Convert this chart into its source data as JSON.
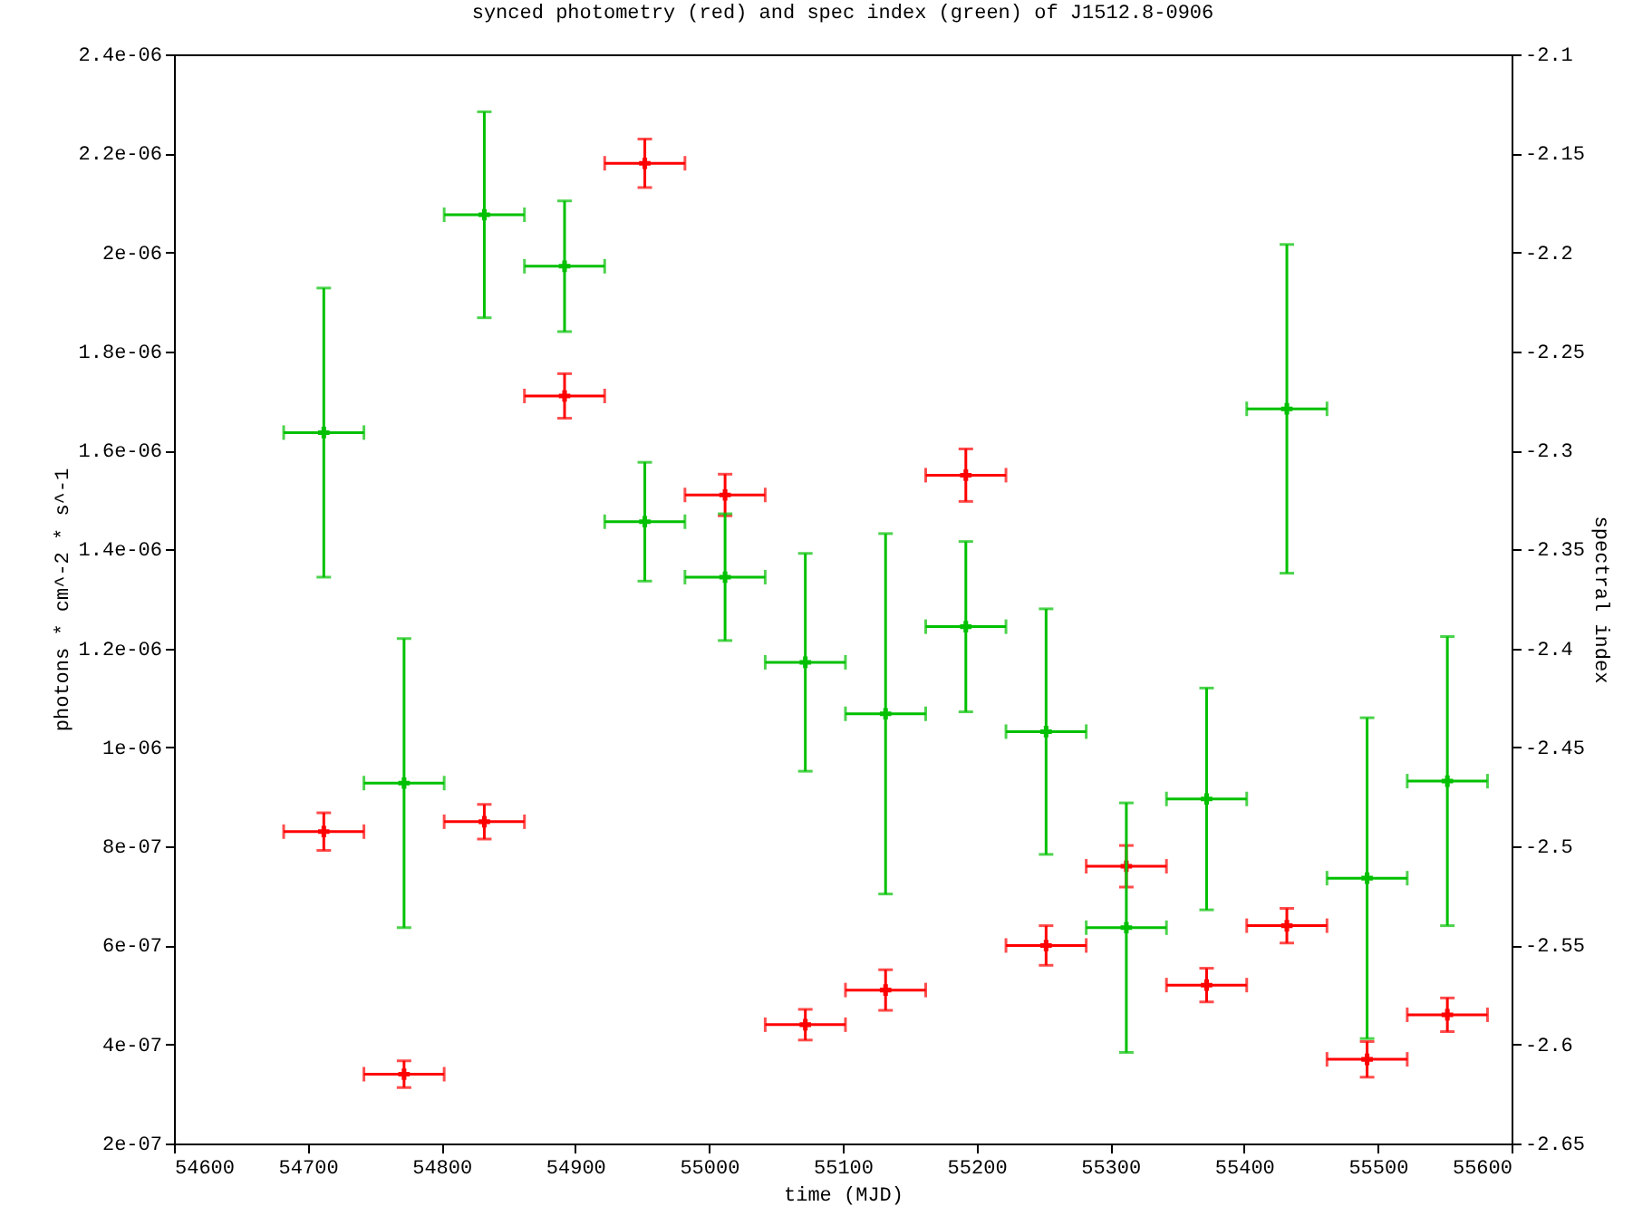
{
  "chart_data": {
    "type": "scatter",
    "title": "synced photometry (red) and spec index (green) of J1512.8-0906",
    "xlabel": "time (MJD)",
    "ylabel": "photons * cm^-2 * s^-1",
    "y2label": "spectral index",
    "x": [
      54712,
      54772,
      54832,
      54892,
      54952,
      55012,
      55072,
      55132,
      55192,
      55252,
      55312,
      55372,
      55432,
      55492,
      55552
    ],
    "series": [
      {
        "color": "#ff0000",
        "marker": "cross",
        "values": [
          8.3e-07,
          3.4e-07,
          8.5e-07,
          1.71e-06,
          2.18e-06,
          1.51e-06,
          4.4e-07,
          5.1e-07,
          1.55e-06,
          6e-07,
          7.6e-07,
          5.2e-07,
          6.4e-07,
          3.7e-07,
          4.6e-07
        ],
        "errors": [
          3.8e-08,
          2.7e-08,
          3.5e-08,
          4.5e-08,
          4.9e-08,
          4.2e-08,
          3.1e-08,
          4.1e-08,
          5.3e-08,
          4e-08,
          4.2e-08,
          3.4e-08,
          3.5e-08,
          3.6e-08,
          3.4e-08
        ],
        "xerrors": [
          30,
          30,
          30,
          30,
          30,
          30,
          30,
          30,
          30,
          30,
          30,
          30,
          30,
          30,
          30
        ]
      },
      {
        "color": "#00c000",
        "marker": "cross",
        "axis": "y2",
        "values": [
          -2.291,
          -2.468,
          -2.181,
          -2.207,
          -2.336,
          -2.364,
          -2.407,
          -2.433,
          -2.389,
          -2.442,
          -2.541,
          -2.476,
          -2.279,
          -2.516,
          -2.467
        ],
        "errors": [
          0.073,
          0.073,
          0.052,
          0.033,
          0.03,
          0.032,
          0.055,
          0.091,
          0.043,
          0.062,
          0.063,
          0.056,
          0.083,
          0.081,
          0.073
        ],
        "xerrors": [
          30,
          30,
          30,
          30,
          30,
          30,
          30,
          30,
          30,
          30,
          30,
          30,
          30,
          30,
          30
        ]
      }
    ],
    "xlim": [
      54600,
      55600
    ],
    "xticks": [
      54600,
      54700,
      54800,
      54900,
      55000,
      55100,
      55200,
      55300,
      55400,
      55500,
      55600
    ],
    "ylim": [
      2e-07,
      2.4e-06
    ],
    "yticks": [
      {
        "value": 2e-07,
        "label": "2e-07"
      },
      {
        "value": 4e-07,
        "label": "4e-07"
      },
      {
        "value": 6e-07,
        "label": "6e-07"
      },
      {
        "value": 8e-07,
        "label": "8e-07"
      },
      {
        "value": 1e-06,
        "label": "1e-06"
      },
      {
        "value": 1.2e-06,
        "label": "1.2e-06"
      },
      {
        "value": 1.4e-06,
        "label": "1.4e-06"
      },
      {
        "value": 1.6e-06,
        "label": "1.6e-06"
      },
      {
        "value": 1.8e-06,
        "label": "1.8e-06"
      },
      {
        "value": 2e-06,
        "label": "2e-06"
      },
      {
        "value": 2.2e-06,
        "label": "2.2e-06"
      },
      {
        "value": 2.4e-06,
        "label": "2.4e-06"
      }
    ],
    "y2lim": [
      -2.65,
      -2.1
    ],
    "y2ticks": [
      -2.65,
      -2.6,
      -2.55,
      -2.5,
      -2.45,
      -2.4,
      -2.35,
      -2.3,
      -2.25,
      -2.2,
      -2.15,
      -2.1
    ]
  }
}
